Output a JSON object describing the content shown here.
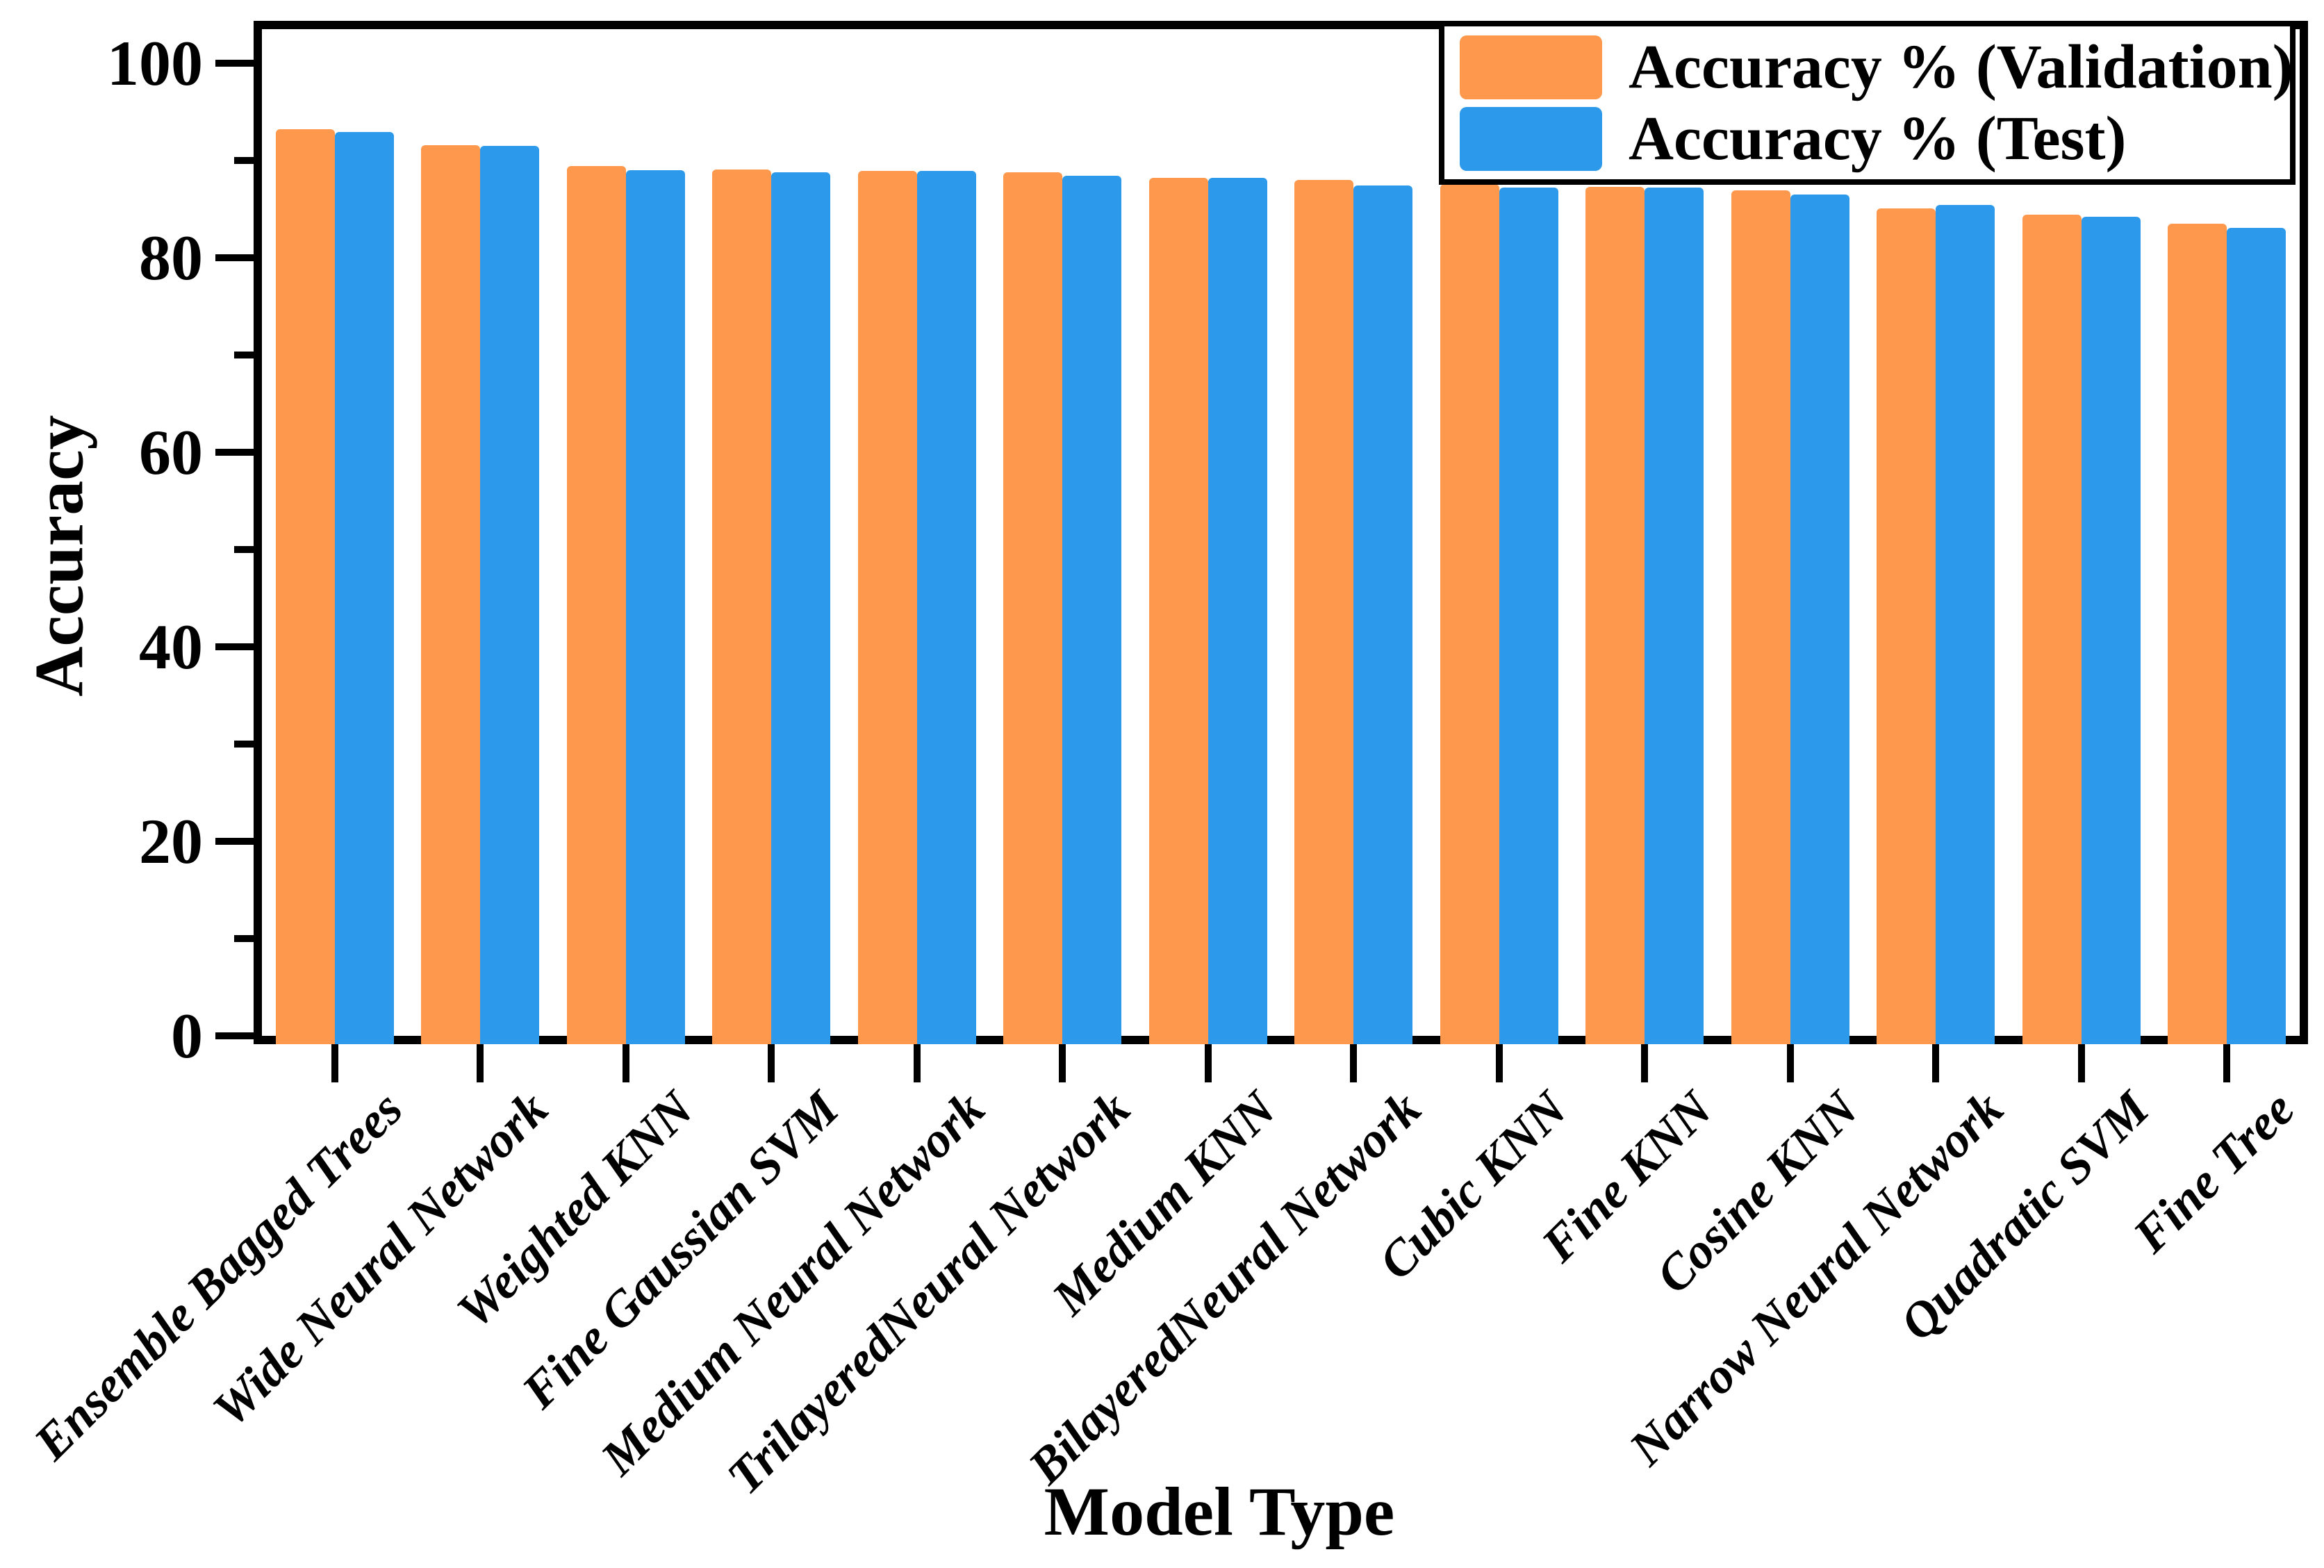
{
  "chart_data": {
    "type": "bar",
    "title": "",
    "xlabel": "Model Type",
    "ylabel": "Accuracy",
    "ylim": [
      0,
      103.5
    ],
    "yticks_major": [
      0,
      20,
      40,
      60,
      80,
      100
    ],
    "yticks_minor": [
      10,
      30,
      50,
      70,
      90
    ],
    "grid": false,
    "legend_position": "top-right",
    "background_color": "#ffffff",
    "frame_color": "#000000",
    "categories": [
      "Ensemble Bagged Trees",
      "Wide Neural Network",
      "Weighted KNN",
      "Fine Gaussian SVM",
      "Medium Neural Network",
      "TrilayeredNeural Network",
      "Medium KNN",
      "BilayeredNeural Network",
      "Cubic KNN",
      "Fine KNN",
      "Cosine KNN",
      "Narrow Neural Network",
      "Quadratic SVM",
      "Fine Tree"
    ],
    "series": [
      {
        "name": "Accuracy % (Validation)",
        "color": "#FD984D",
        "values": [
          93.2,
          91.6,
          89.4,
          89.1,
          88.9,
          88.8,
          88.2,
          88.0,
          87.6,
          87.3,
          86.9,
          85.1,
          84.4,
          83.5
        ]
      },
      {
        "name": "Accuracy % (Test)",
        "color": "#2C99EB",
        "values": [
          92.9,
          91.5,
          89.0,
          88.8,
          88.9,
          88.4,
          88.2,
          87.4,
          87.2,
          87.2,
          86.5,
          85.4,
          84.2,
          83.1
        ]
      }
    ]
  }
}
